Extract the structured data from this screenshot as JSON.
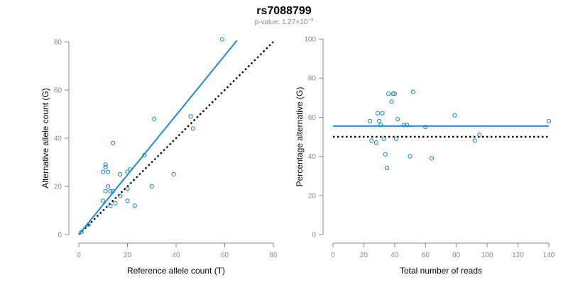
{
  "header": {
    "title": "rs7088799",
    "pvalue_prefix": "p-value: 1.27×10",
    "pvalue_exp": "−4"
  },
  "colors": {
    "points": "#1a86c8",
    "fit_line": "#1f88e0",
    "reference_line": "#000000",
    "axes": "#8a8a8a"
  },
  "chart_data": [
    {
      "type": "scatter",
      "xlabel": "Reference allele count (T)",
      "ylabel": "Alternative allele count (G)",
      "xlim": [
        0,
        80
      ],
      "ylim": [
        0,
        80
      ],
      "xticks": [
        0,
        20,
        40,
        60,
        80
      ],
      "yticks": [
        0,
        20,
        40,
        60,
        80
      ],
      "grid": false,
      "points": [
        {
          "x": 1,
          "y": 1
        },
        {
          "x": 4,
          "y": 4
        },
        {
          "x": 10,
          "y": 14
        },
        {
          "x": 11,
          "y": 18
        },
        {
          "x": 10,
          "y": 26
        },
        {
          "x": 11,
          "y": 28
        },
        {
          "x": 11,
          "y": 29
        },
        {
          "x": 12,
          "y": 26
        },
        {
          "x": 12,
          "y": 20
        },
        {
          "x": 13,
          "y": 12
        },
        {
          "x": 13,
          "y": 18
        },
        {
          "x": 14,
          "y": 18
        },
        {
          "x": 14,
          "y": 38
        },
        {
          "x": 15,
          "y": 13
        },
        {
          "x": 17,
          "y": 16
        },
        {
          "x": 17,
          "y": 25
        },
        {
          "x": 20,
          "y": 14
        },
        {
          "x": 20,
          "y": 19
        },
        {
          "x": 20,
          "y": 26
        },
        {
          "x": 21,
          "y": 27
        },
        {
          "x": 23,
          "y": 12
        },
        {
          "x": 27,
          "y": 33
        },
        {
          "x": 30,
          "y": 20
        },
        {
          "x": 31,
          "y": 48
        },
        {
          "x": 39,
          "y": 25
        },
        {
          "x": 46,
          "y": 49
        },
        {
          "x": 47,
          "y": 44
        },
        {
          "x": 59,
          "y": 81
        }
      ],
      "fit_line": {
        "x": [
          0,
          65
        ],
        "y": [
          0,
          80.5
        ]
      },
      "reference_line": {
        "x": [
          0,
          80
        ],
        "y": [
          0,
          80
        ]
      }
    },
    {
      "type": "scatter",
      "xlabel": "Total number of reads",
      "ylabel": "Percentage alternative (G)",
      "xlim": [
        0,
        140
      ],
      "ylim": [
        0,
        100
      ],
      "xticks": [
        0,
        20,
        40,
        60,
        80,
        100,
        120,
        140
      ],
      "yticks": [
        0,
        20,
        40,
        60,
        80,
        100
      ],
      "grid": false,
      "points": [
        {
          "x": 24,
          "y": 58
        },
        {
          "x": 25,
          "y": 48
        },
        {
          "x": 28,
          "y": 47
        },
        {
          "x": 29,
          "y": 62
        },
        {
          "x": 30,
          "y": 58
        },
        {
          "x": 31,
          "y": 56
        },
        {
          "x": 32,
          "y": 62
        },
        {
          "x": 33,
          "y": 49
        },
        {
          "x": 34,
          "y": 41
        },
        {
          "x": 35,
          "y": 34
        },
        {
          "x": 36,
          "y": 72
        },
        {
          "x": 38,
          "y": 68
        },
        {
          "x": 39,
          "y": 72
        },
        {
          "x": 40,
          "y": 72
        },
        {
          "x": 41,
          "y": 49
        },
        {
          "x": 42,
          "y": 59
        },
        {
          "x": 46,
          "y": 56
        },
        {
          "x": 48,
          "y": 56
        },
        {
          "x": 50,
          "y": 40
        },
        {
          "x": 52,
          "y": 73
        },
        {
          "x": 60,
          "y": 55
        },
        {
          "x": 64,
          "y": 39
        },
        {
          "x": 79,
          "y": 61
        },
        {
          "x": 92,
          "y": 48
        },
        {
          "x": 95,
          "y": 51
        },
        {
          "x": 140,
          "y": 58
        }
      ],
      "fit_line": {
        "x": [
          0,
          140
        ],
        "y": [
          55.5,
          55.5
        ]
      },
      "reference_line": {
        "x": [
          0,
          140
        ],
        "y": [
          50,
          50
        ]
      }
    }
  ]
}
